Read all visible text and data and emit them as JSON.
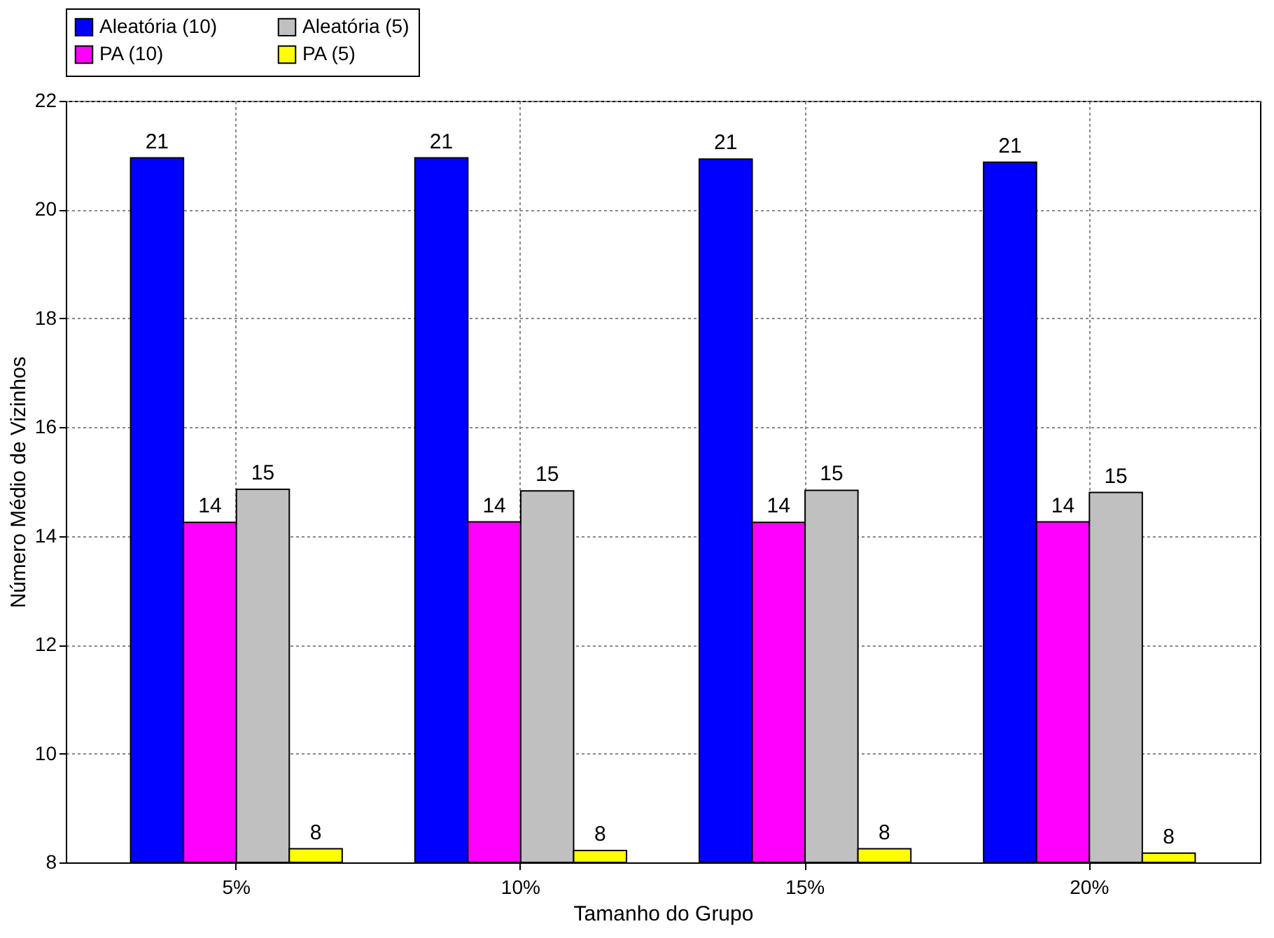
{
  "chart_data": {
    "type": "bar",
    "xlabel": "Tamanho do Grupo",
    "ylabel": "Número Médio de Vizinhos",
    "categories": [
      "5%",
      "10%",
      "15%",
      "20%"
    ],
    "series": [
      {
        "name": "Aleatória (10)",
        "color": "#0000ff",
        "values": [
          20.95,
          20.95,
          20.93,
          20.87
        ],
        "value_labels": [
          "21",
          "21",
          "21",
          "21"
        ]
      },
      {
        "name": "PA (10)",
        "color": "#ff00ff",
        "values": [
          14.25,
          14.26,
          14.25,
          14.26
        ],
        "value_labels": [
          "14",
          "14",
          "14",
          "14"
        ]
      },
      {
        "name": "Aleatória (5)",
        "color": "#c0c0c0",
        "values": [
          14.86,
          14.83,
          14.84,
          14.8
        ],
        "value_labels": [
          "15",
          "15",
          "15",
          "15"
        ]
      },
      {
        "name": "PA (5)",
        "color": "#ffff00",
        "values": [
          8.25,
          8.22,
          8.25,
          8.17
        ],
        "value_labels": [
          "8",
          "8",
          "8",
          "8"
        ]
      }
    ],
    "ylim": [
      8,
      22
    ],
    "yticks": [
      8,
      10,
      12,
      14,
      16,
      18,
      20,
      22
    ],
    "grid": true,
    "legend": "top"
  }
}
